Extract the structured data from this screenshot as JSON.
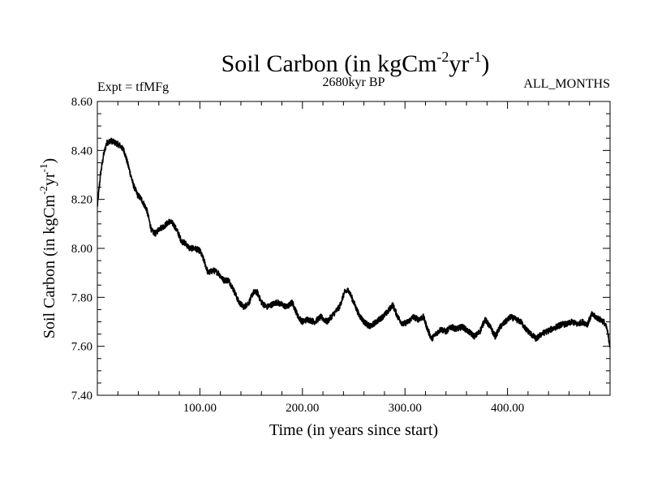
{
  "chart_data": {
    "type": "line",
    "title": {
      "main": "Soil Carbon (in kgCm",
      "exp1": "-2",
      "mid": "yr",
      "exp2": "-1",
      "close": ")"
    },
    "subtitle_left": "Expt = tfMFg",
    "subtitle_center": "2680kyr BP",
    "subtitle_right": "ALL_MONTHS",
    "xlabel": "Time (in years since start)",
    "ylabel": {
      "main": "Soil Carbon (in kgCm",
      "exp1": "-2",
      "mid": "yr",
      "exp2": "-1",
      "close": ")"
    },
    "xlim": [
      0,
      500
    ],
    "ylim": [
      7.4,
      8.6
    ],
    "x_ticks": [
      100,
      200,
      300,
      400
    ],
    "x_tick_labels": [
      "100.00",
      "200.00",
      "300.00",
      "400.00"
    ],
    "y_ticks": [
      7.4,
      7.6,
      7.8,
      8.0,
      8.2,
      8.4,
      8.6
    ],
    "y_tick_labels": [
      "7.40",
      "7.60",
      "7.80",
      "8.00",
      "8.20",
      "8.40",
      "8.60"
    ],
    "line_color": "#000000",
    "noise_amplitude": 0.012,
    "series": [
      {
        "name": "Soil Carbon",
        "x": [
          0,
          3,
          6,
          9,
          13,
          18,
          22,
          26,
          30,
          35,
          39,
          43,
          48,
          53,
          57,
          60,
          65,
          70,
          74,
          78,
          82,
          86,
          90,
          95,
          100,
          104,
          108,
          113,
          118,
          123,
          128,
          133,
          138,
          143,
          148,
          152,
          156,
          160,
          165,
          170,
          175,
          180,
          185,
          190,
          196,
          200,
          205,
          212,
          218,
          224,
          230,
          236,
          241,
          245,
          250,
          255,
          260,
          266,
          272,
          278,
          283,
          288,
          293,
          298,
          303,
          308,
          313,
          318,
          322,
          326,
          330,
          335,
          340,
          345,
          350,
          356,
          362,
          368,
          373,
          378,
          383,
          388,
          393,
          398,
          403,
          408,
          413,
          418,
          423,
          428,
          433,
          438,
          443,
          448,
          453,
          458,
          463,
          468,
          473,
          478,
          482,
          486,
          490,
          494,
          497,
          500
        ],
        "y": [
          8.17,
          8.3,
          8.38,
          8.43,
          8.44,
          8.43,
          8.42,
          8.4,
          8.34,
          8.26,
          8.22,
          8.2,
          8.16,
          8.07,
          8.06,
          8.08,
          8.09,
          8.11,
          8.1,
          8.07,
          8.03,
          8.02,
          8.0,
          8.0,
          7.99,
          7.95,
          7.9,
          7.91,
          7.9,
          7.87,
          7.87,
          7.83,
          7.78,
          7.76,
          7.78,
          7.82,
          7.82,
          7.78,
          7.76,
          7.77,
          7.78,
          7.77,
          7.76,
          7.78,
          7.72,
          7.7,
          7.71,
          7.7,
          7.72,
          7.7,
          7.73,
          7.76,
          7.82,
          7.83,
          7.78,
          7.73,
          7.7,
          7.68,
          7.7,
          7.72,
          7.74,
          7.77,
          7.72,
          7.69,
          7.7,
          7.72,
          7.71,
          7.72,
          7.67,
          7.63,
          7.65,
          7.67,
          7.66,
          7.68,
          7.67,
          7.68,
          7.66,
          7.64,
          7.66,
          7.71,
          7.68,
          7.64,
          7.68,
          7.7,
          7.72,
          7.71,
          7.7,
          7.67,
          7.65,
          7.63,
          7.65,
          7.66,
          7.67,
          7.68,
          7.69,
          7.69,
          7.7,
          7.69,
          7.7,
          7.69,
          7.73,
          7.72,
          7.71,
          7.7,
          7.67,
          7.6
        ]
      }
    ]
  }
}
